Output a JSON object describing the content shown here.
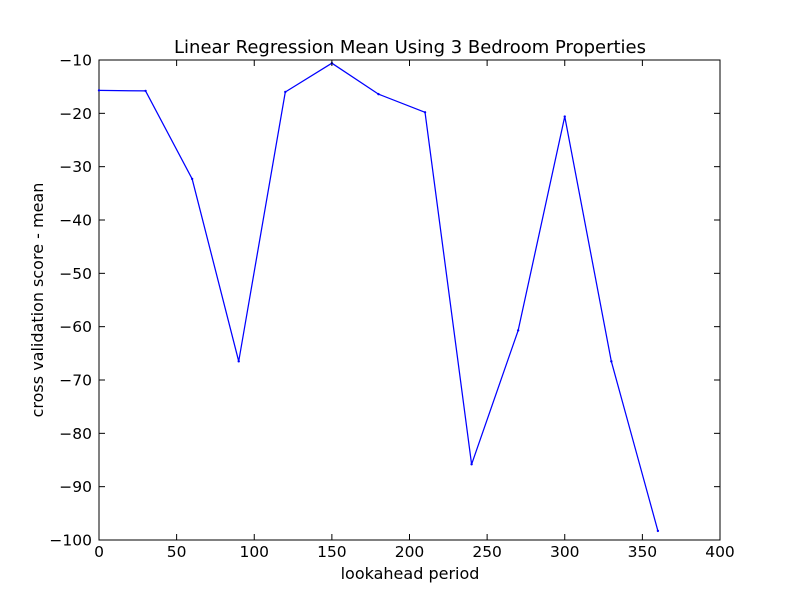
{
  "chart_data": {
    "type": "line",
    "title": "Linear Regression Mean Using 3 Bedroom Properties",
    "xlabel": "lookahead period",
    "ylabel": "cross validation score - mean",
    "xlim": [
      0,
      400
    ],
    "ylim": [
      -100,
      -10
    ],
    "xticks": [
      0,
      50,
      100,
      150,
      200,
      250,
      300,
      350,
      400
    ],
    "yticks": [
      -10,
      -20,
      -30,
      -40,
      -50,
      -60,
      -70,
      -80,
      -90,
      -100
    ],
    "xtick_labels": [
      "0",
      "50",
      "100",
      "150",
      "200",
      "250",
      "300",
      "350",
      "400"
    ],
    "ytick_labels": [
      "−10",
      "−20",
      "−30",
      "−40",
      "−50",
      "−60",
      "−70",
      "−80",
      "−90",
      "−100"
    ],
    "grid": false,
    "legend": "none",
    "series": [
      {
        "color": "#0000ff",
        "x": [
          0,
          30,
          60,
          90,
          120,
          150,
          180,
          210,
          240,
          270,
          300,
          330,
          360
        ],
        "y": [
          -15.7,
          -15.8,
          -32.3,
          -66.5,
          -16.0,
          -10.6,
          -16.4,
          -19.8,
          -85.8,
          -60.7,
          -20.6,
          -66.5,
          -98.3
        ]
      }
    ]
  }
}
